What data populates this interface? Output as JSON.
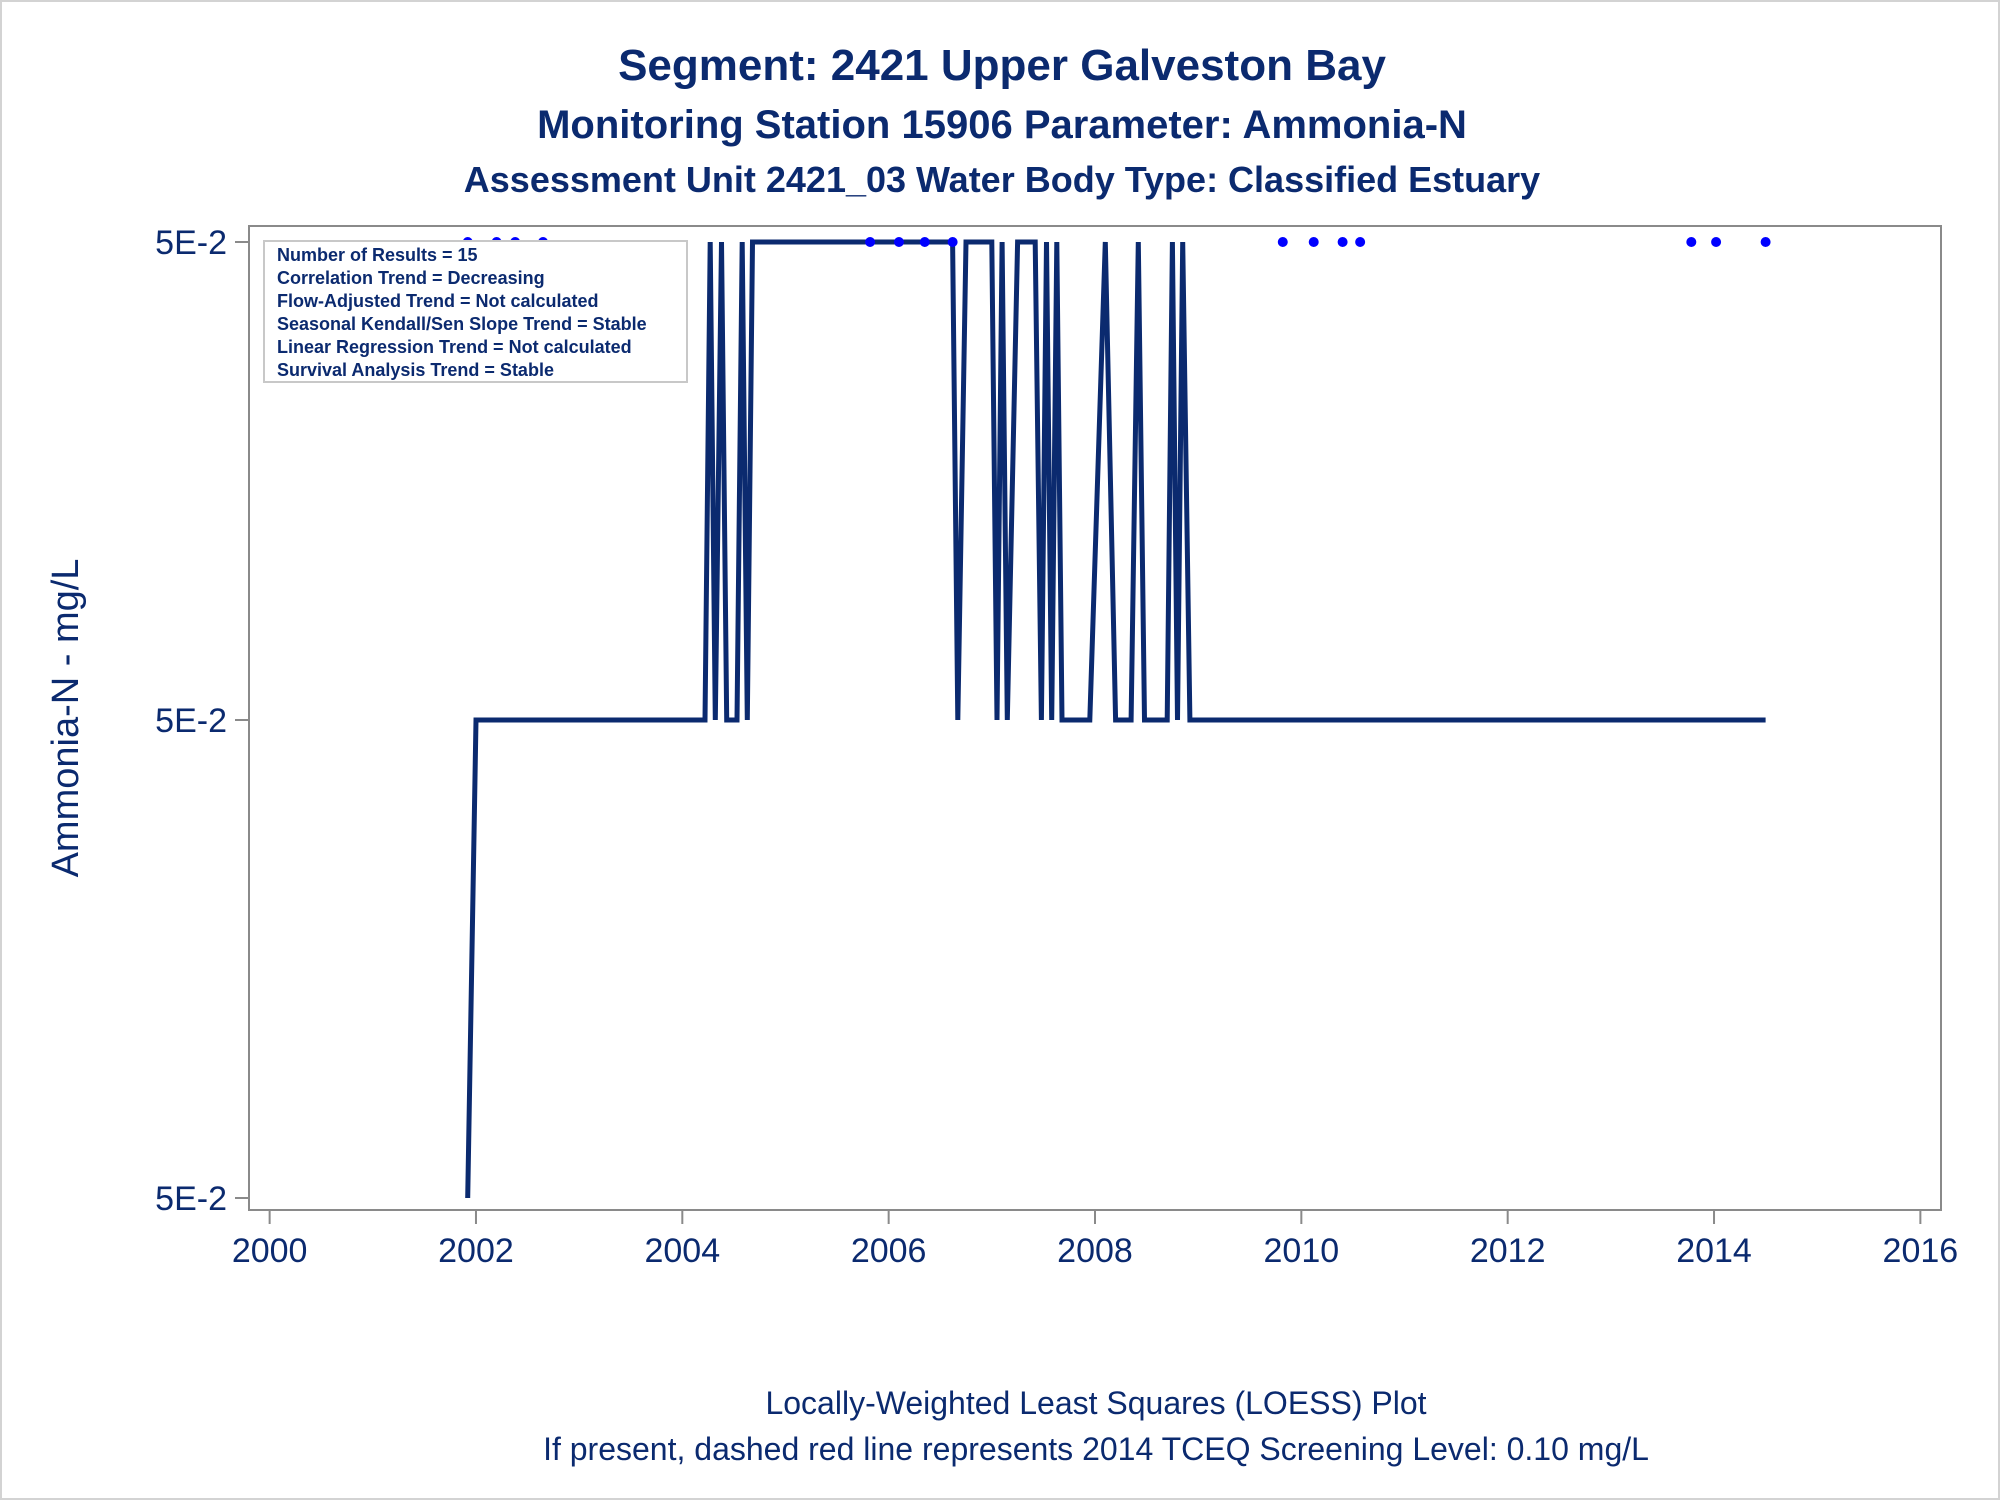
{
  "chart_data": {
    "type": "line",
    "title": "Segment: 2421  Upper Galveston Bay",
    "subtitle": "Monitoring Station 15906 Parameter: Ammonia-N",
    "subtitle2": "Assessment Unit 2421_03   Water Body Type: Classified Estuary",
    "xlabel": "",
    "ylabel": "Ammonia-N - mg/L",
    "xlim": [
      1999.8,
      2016.2
    ],
    "xticks": [
      2000,
      2002,
      2004,
      2006,
      2008,
      2010,
      2012,
      2014,
      2016
    ],
    "xtick_labels": [
      "2000",
      "2002",
      "2004",
      "2006",
      "2008",
      "2010",
      "2012",
      "2014",
      "2016"
    ],
    "ytick_labels": [
      "5E-2",
      "5E-2",
      "5E-2"
    ],
    "ylim": [
      0,
      2
    ],
    "grid": false,
    "legend": "top-left",
    "stats": [
      "Number of Results = 15",
      "Correlation Trend = Decreasing",
      "Flow-Adjusted Trend = Not calculated",
      "Seasonal Kendall/Sen Slope Trend = Stable",
      "Linear Regression Trend = Not calculated",
      "Survival Analysis Trend = Stable"
    ],
    "footnote1": "Locally-Weighted Least Squares (LOESS) Plot",
    "footnote2": "If present, dashed red line represents 2014 TCEQ Screening Level: 0.10 mg/L",
    "line_color": "#0b2a6f",
    "point_color": "#0000ff",
    "series": [
      {
        "type": "line",
        "points": [
          [
            2001.92,
            0
          ],
          [
            2002.0,
            1
          ],
          [
            2004.22,
            1
          ],
          [
            2004.27,
            2
          ],
          [
            2004.32,
            1
          ],
          [
            2004.38,
            2
          ],
          [
            2004.43,
            1
          ],
          [
            2004.53,
            1
          ],
          [
            2004.58,
            2
          ],
          [
            2004.63,
            1
          ],
          [
            2004.68,
            2
          ],
          [
            2006.62,
            2
          ],
          [
            2006.67,
            1
          ],
          [
            2006.75,
            2
          ],
          [
            2007.0,
            2
          ],
          [
            2007.05,
            1
          ],
          [
            2007.1,
            2
          ],
          [
            2007.15,
            1
          ],
          [
            2007.25,
            2
          ],
          [
            2007.42,
            2
          ],
          [
            2007.48,
            1
          ],
          [
            2007.53,
            2
          ],
          [
            2007.58,
            1
          ],
          [
            2007.63,
            2
          ],
          [
            2007.68,
            1
          ],
          [
            2007.95,
            1
          ],
          [
            2008.1,
            2
          ],
          [
            2008.2,
            1
          ],
          [
            2008.35,
            1
          ],
          [
            2008.42,
            2
          ],
          [
            2008.48,
            1
          ],
          [
            2008.7,
            1
          ],
          [
            2008.75,
            2
          ],
          [
            2008.8,
            1
          ],
          [
            2008.85,
            2
          ],
          [
            2008.92,
            1
          ],
          [
            2014.5,
            1
          ]
        ]
      },
      {
        "type": "scatter",
        "points": [
          [
            2001.92,
            2
          ],
          [
            2002.2,
            2
          ],
          [
            2002.38,
            2
          ],
          [
            2002.65,
            2
          ],
          [
            2005.82,
            2
          ],
          [
            2006.1,
            2
          ],
          [
            2006.35,
            2
          ],
          [
            2006.62,
            2
          ],
          [
            2009.82,
            2
          ],
          [
            2010.12,
            2
          ],
          [
            2010.4,
            2
          ],
          [
            2010.57,
            2
          ],
          [
            2013.78,
            2
          ],
          [
            2014.02,
            2
          ],
          [
            2014.5,
            2
          ]
        ]
      }
    ]
  }
}
